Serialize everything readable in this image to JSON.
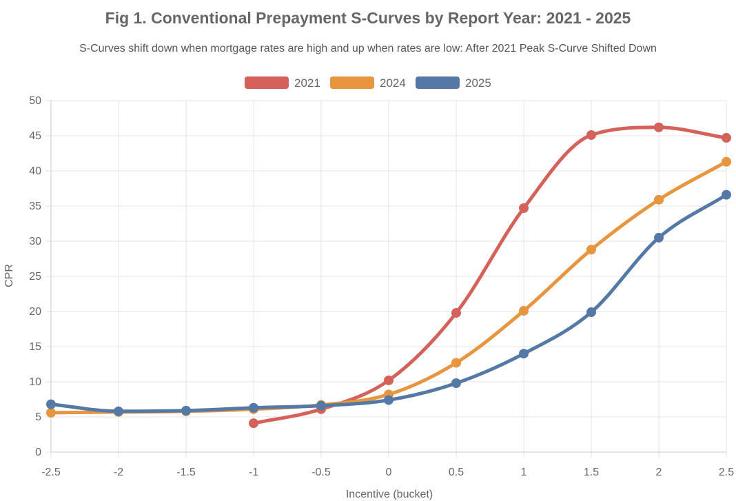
{
  "chart_data": {
    "type": "line",
    "title": "Fig 1. Conventional Prepayment S-Curves by Report Year: 2021 - 2025",
    "subtitle": "S-Curves shift down when mortgage rates are high and up when rates are low: After 2021 Peak S-Curve Shifted Down",
    "xlabel": "Incentive (bucket)",
    "ylabel": "CPR",
    "x_ticks": [
      "-2.5",
      "-2",
      "-1.5",
      "-1",
      "-0.5",
      "0",
      "0.5",
      "1",
      "1.5",
      "2",
      "2.5"
    ],
    "x": [
      -2.5,
      -2,
      -1.5,
      -1,
      -0.5,
      0,
      0.5,
      1,
      1.5,
      2,
      2.5
    ],
    "xlim": [
      -2.5,
      2.5
    ],
    "y_ticks": [
      "0",
      "5",
      "10",
      "15",
      "20",
      "25",
      "30",
      "35",
      "40",
      "45",
      "50"
    ],
    "ylim": [
      0,
      50
    ],
    "grid": true,
    "legend_position": "top-center",
    "series": [
      {
        "name": "2021",
        "color": "#d4625b",
        "values": [
          null,
          null,
          null,
          4.1,
          6.1,
          10.2,
          19.8,
          34.7,
          45.1,
          46.2,
          44.7
        ]
      },
      {
        "name": "2024",
        "color": "#e8953f",
        "values": [
          5.6,
          5.7,
          5.8,
          6.1,
          6.7,
          8.2,
          12.7,
          20.1,
          28.8,
          35.9,
          41.3
        ]
      },
      {
        "name": "2025",
        "color": "#5479a6",
        "values": [
          6.8,
          5.8,
          5.9,
          6.3,
          6.6,
          7.4,
          9.8,
          14.0,
          19.9,
          30.5,
          36.6
        ]
      }
    ]
  }
}
